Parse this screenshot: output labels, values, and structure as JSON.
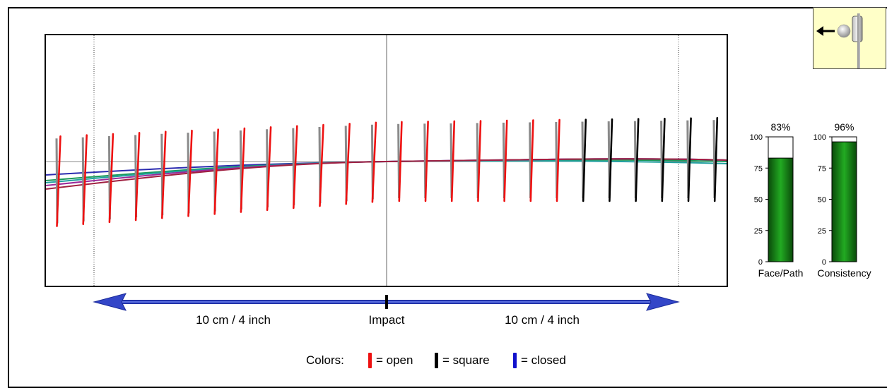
{
  "chart_data": [
    {
      "type": "line",
      "title": "",
      "xlabels": {
        "left": "10 cm / 4 inch",
        "center": "Impact",
        "right": "10 cm / 4 inch"
      },
      "face_marks": [
        {
          "color": "red"
        },
        {
          "color": "red"
        },
        {
          "color": "red"
        },
        {
          "color": "red"
        },
        {
          "color": "red"
        },
        {
          "color": "red"
        },
        {
          "color": "red"
        },
        {
          "color": "red"
        },
        {
          "color": "red"
        },
        {
          "color": "red"
        },
        {
          "color": "red"
        },
        {
          "color": "red"
        },
        {
          "color": "red"
        },
        {
          "color": "red"
        },
        {
          "color": "red"
        },
        {
          "color": "red"
        },
        {
          "color": "red"
        },
        {
          "color": "red"
        },
        {
          "color": "red"
        },
        {
          "color": "red"
        },
        {
          "color": "black"
        },
        {
          "color": "black"
        },
        {
          "color": "black"
        },
        {
          "color": "black"
        },
        {
          "color": "black"
        },
        {
          "color": "black"
        }
      ],
      "path_lines": [
        {
          "color": "#2b2bb0"
        },
        {
          "color": "#1a9a5a"
        },
        {
          "color": "#22a0a0"
        },
        {
          "color": "#9a2a9a"
        },
        {
          "color": "#a02040"
        }
      ]
    },
    {
      "type": "bar",
      "categories": [
        "Face/Path",
        "Consistency"
      ],
      "values": [
        83,
        96
      ],
      "value_labels": [
        "83%",
        "96%"
      ],
      "ylim": [
        0,
        100
      ],
      "yticks": [
        "100",
        "75",
        "50",
        "25",
        "0"
      ],
      "bar_color": "#117711"
    }
  ],
  "legend": {
    "prefix": "Colors:",
    "items": [
      {
        "label": "= open",
        "color": "#ee1111"
      },
      {
        "label": "= square",
        "color": "#000000"
      },
      {
        "label": "= closed",
        "color": "#1111cc"
      }
    ]
  },
  "icon": "putter-ball-arrow-icon"
}
